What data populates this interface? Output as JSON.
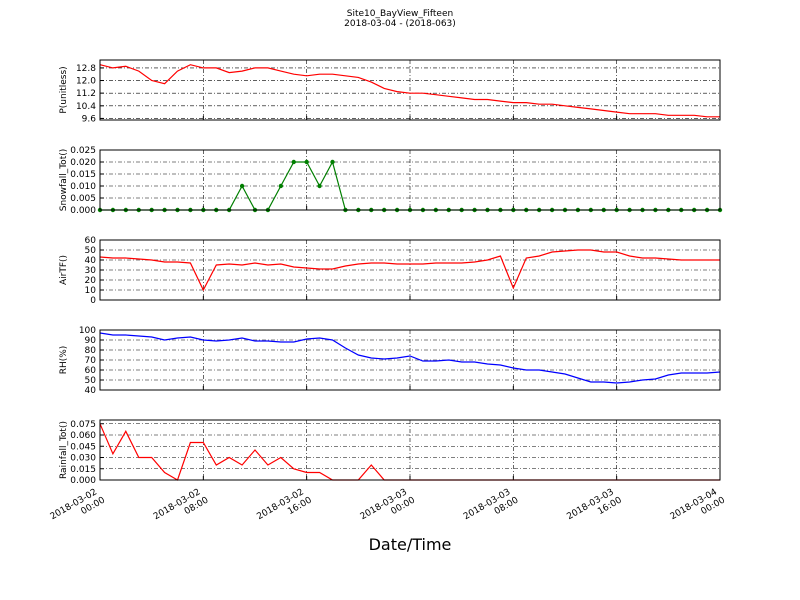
{
  "figure": {
    "title": "Site10_BayView_Fifteen",
    "subtitle": "2018-03-04 - (2018-063)",
    "xlabel": "Date/Time",
    "xlim": [
      "2018-03-02 00:00",
      "2018-03-04 00:00"
    ],
    "xticks": [
      "2018-03-02 00:00",
      "2018-03-02 08:00",
      "2018-03-02 16:00",
      "2018-03-03 00:00",
      "2018-03-03 08:00",
      "2018-03-03 16:00",
      "2018-03-04 00:00"
    ],
    "x": [
      "2018-03-02 00:00",
      "2018-03-02 01:00",
      "2018-03-02 02:00",
      "2018-03-02 03:00",
      "2018-03-02 04:00",
      "2018-03-02 05:00",
      "2018-03-02 06:00",
      "2018-03-02 07:00",
      "2018-03-02 08:00",
      "2018-03-02 09:00",
      "2018-03-02 10:00",
      "2018-03-02 11:00",
      "2018-03-02 12:00",
      "2018-03-02 13:00",
      "2018-03-02 14:00",
      "2018-03-02 15:00",
      "2018-03-02 16:00",
      "2018-03-02 17:00",
      "2018-03-02 18:00",
      "2018-03-02 19:00",
      "2018-03-02 20:00",
      "2018-03-02 21:00",
      "2018-03-02 22:00",
      "2018-03-02 23:00",
      "2018-03-03 00:00",
      "2018-03-03 01:00",
      "2018-03-03 02:00",
      "2018-03-03 03:00",
      "2018-03-03 04:00",
      "2018-03-03 05:00",
      "2018-03-03 06:00",
      "2018-03-03 07:00",
      "2018-03-03 08:00",
      "2018-03-03 09:00",
      "2018-03-03 10:00",
      "2018-03-03 11:00",
      "2018-03-03 12:00",
      "2018-03-03 13:00",
      "2018-03-03 14:00",
      "2018-03-03 15:00",
      "2018-03-03 16:00",
      "2018-03-03 17:00",
      "2018-03-03 18:00",
      "2018-03-03 19:00",
      "2018-03-03 20:00",
      "2018-03-03 21:00",
      "2018-03-03 22:00",
      "2018-03-03 23:00",
      "2018-03-04 00:00"
    ]
  },
  "chart_data": [
    {
      "type": "line",
      "ylabel": "P(unitless)",
      "color": "#ff0000",
      "grid": true,
      "markers": false,
      "ylim": [
        9.5,
        13.3
      ],
      "yticks": [
        9.6,
        10.4,
        11.2,
        {
          "value": 12.0,
          "label": "12.0"
        },
        12.8
      ],
      "values": [
        13.0,
        12.8,
        12.9,
        12.6,
        12.0,
        11.8,
        12.6,
        13.0,
        12.8,
        12.8,
        12.5,
        12.6,
        12.8,
        12.8,
        12.6,
        12.4,
        12.3,
        12.4,
        12.4,
        12.3,
        12.2,
        11.9,
        11.5,
        11.3,
        11.2,
        11.2,
        11.1,
        11.0,
        10.9,
        10.8,
        10.8,
        10.7,
        10.6,
        10.6,
        10.5,
        10.5,
        10.4,
        10.3,
        10.2,
        10.1,
        10.0,
        9.9,
        9.9,
        9.9,
        9.8,
        9.8,
        9.8,
        9.7,
        9.7
      ]
    },
    {
      "type": "line",
      "ylabel": "Snowfall_Tot()",
      "color": "#007f00",
      "grid": true,
      "markers": true,
      "ylim": [
        0,
        0.025
      ],
      "yticks": [
        {
          "value": 0,
          "label": "0.000"
        },
        {
          "value": 0.005,
          "label": "0.005"
        },
        {
          "value": 0.01,
          "label": "0.010"
        },
        {
          "value": 0.015,
          "label": "0.015"
        },
        {
          "value": 0.02,
          "label": "0.020"
        },
        {
          "value": 0.025,
          "label": "0.025"
        }
      ],
      "values": [
        0,
        0,
        0,
        0,
        0,
        0,
        0,
        0,
        0,
        0,
        0,
        0.01,
        0,
        0,
        0.01,
        0.02,
        0.02,
        0.01,
        0.02,
        0,
        0,
        0,
        0,
        0,
        0,
        0,
        0,
        0,
        0,
        0,
        0,
        0,
        0,
        0,
        0,
        0,
        0,
        0,
        0,
        0,
        0,
        0,
        0,
        0,
        0,
        0,
        0,
        0,
        0
      ]
    },
    {
      "type": "line",
      "ylabel": "AirTF()",
      "color": "#ff0000",
      "grid": true,
      "markers": false,
      "ylim": [
        0,
        60
      ],
      "yticks": [
        0,
        10,
        20,
        30,
        40,
        50,
        60
      ],
      "values": [
        43,
        42,
        42,
        41,
        40,
        38,
        38,
        37,
        10,
        35,
        36,
        35,
        37,
        35,
        36,
        33,
        32,
        31,
        31,
        34,
        36,
        37,
        37,
        36,
        36,
        36,
        37,
        37,
        37,
        38,
        40,
        44,
        12,
        42,
        44,
        48,
        49,
        50,
        50,
        48,
        48,
        44,
        42,
        42,
        41,
        40,
        40,
        40,
        40
      ]
    },
    {
      "type": "line",
      "ylabel": "RH(%)",
      "color": "#0000ff",
      "grid": true,
      "markers": false,
      "ylim": [
        40,
        100
      ],
      "yticks": [
        40,
        50,
        60,
        70,
        80,
        90,
        100
      ],
      "values": [
        97,
        95,
        95,
        94,
        93,
        90,
        92,
        93,
        90,
        89,
        90,
        92,
        89,
        89,
        88,
        88,
        91,
        92,
        90,
        82,
        75,
        72,
        71,
        72,
        74,
        69,
        69,
        70,
        68,
        68,
        66,
        65,
        62,
        60,
        60,
        58,
        56,
        52,
        48,
        48,
        47,
        48,
        50,
        51,
        55,
        57,
        57,
        57,
        58
      ]
    },
    {
      "type": "line",
      "ylabel": "Rainfall_Tot()",
      "color": "#ff0000",
      "grid": true,
      "markers": false,
      "ylim": [
        0,
        0.08
      ],
      "yticks": [
        {
          "value": 0,
          "label": "0.000"
        },
        {
          "value": 0.015,
          "label": "0.015"
        },
        {
          "value": 0.03,
          "label": "0.030"
        },
        {
          "value": 0.045,
          "label": "0.045"
        },
        {
          "value": 0.06,
          "label": "0.060"
        },
        {
          "value": 0.075,
          "label": "0.075"
        }
      ],
      "values": [
        0.075,
        0.035,
        0.065,
        0.03,
        0.03,
        0.01,
        0,
        0.05,
        0.05,
        0.02,
        0.03,
        0.02,
        0.04,
        0.02,
        0.03,
        0.015,
        0.01,
        0.01,
        0,
        0,
        0,
        0.02,
        0,
        0,
        0,
        0,
        0,
        0,
        0,
        0,
        0,
        0,
        0,
        0,
        0,
        0,
        0,
        0,
        0,
        0,
        0,
        0,
        0,
        0,
        0,
        0,
        0,
        0,
        0
      ]
    }
  ]
}
